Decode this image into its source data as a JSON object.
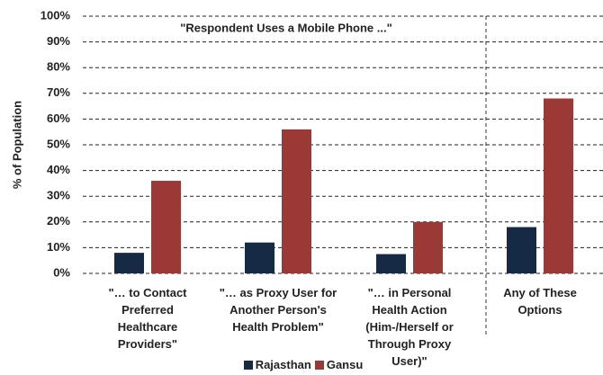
{
  "chart_data": {
    "type": "bar",
    "y_label": "% of Population",
    "annotation": "\"Respondent Uses a Mobile Phone ...\"",
    "categories": [
      "\"… to Contact Preferred Healthcare Providers\"",
      "\"… as Proxy User for Another Person's Health Problem\"",
      "\"… in Personal Health Action (Him-/Herself or Through Proxy User)\"",
      "Any of These Options"
    ],
    "series": [
      {
        "name": "Rajasthan",
        "color": "#172a45",
        "values": [
          8,
          12,
          7.5,
          18
        ]
      },
      {
        "name": "Gansu",
        "color": "#9b3937",
        "values": [
          36,
          56,
          20,
          68
        ]
      }
    ],
    "ylim": [
      0,
      100
    ],
    "yticks": [
      {
        "value": 0,
        "label": "0%"
      },
      {
        "value": 10,
        "label": "10%"
      },
      {
        "value": 20,
        "label": "20%"
      },
      {
        "value": 30,
        "label": "30%"
      },
      {
        "value": 40,
        "label": "40%"
      },
      {
        "value": 50,
        "label": "50%"
      },
      {
        "value": 60,
        "label": "60%"
      },
      {
        "value": 70,
        "label": "70%"
      },
      {
        "value": 80,
        "label": "80%"
      },
      {
        "value": 90,
        "label": "90%"
      },
      {
        "value": 100,
        "label": "100%"
      }
    ],
    "grid": true,
    "legend": "bottom"
  }
}
